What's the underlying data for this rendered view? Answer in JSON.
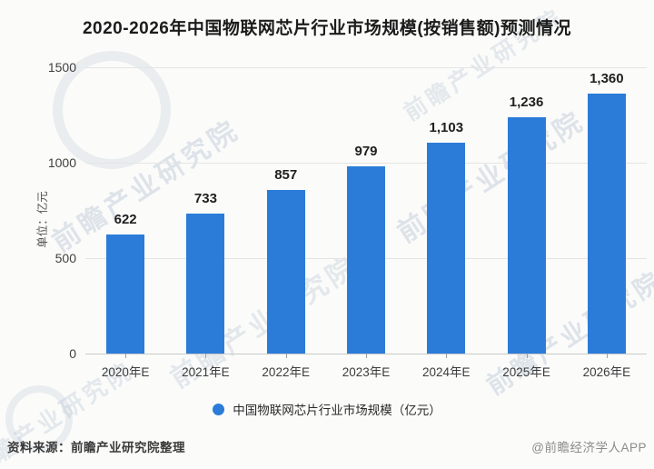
{
  "title": "2020-2026年中国物联网芯片行业市场规模(按销售额)预测情况",
  "chart_data": {
    "type": "bar",
    "categories": [
      "2020年E",
      "2021年E",
      "2022年E",
      "2023年E",
      "2024年E",
      "2025年E",
      "2026年E"
    ],
    "values": [
      622,
      733,
      857,
      979,
      1103,
      1236,
      1360
    ],
    "value_labels": [
      "622",
      "733",
      "857",
      "979",
      "1,103",
      "1,236",
      "1,360"
    ],
    "title": "2020-2026年中国物联网芯片行业市场规模(按销售额)预测情况",
    "xlabel": "",
    "ylabel": "单位：亿元",
    "ylim": [
      0,
      1500
    ],
    "yticks": [
      0,
      500,
      1000,
      1500
    ],
    "grid": true,
    "bar_color": "#2b7cd9",
    "legend_entries": [
      "中国物联网芯片行业市场规模（亿元）"
    ],
    "legend_position": "bottom"
  },
  "y_axis": {
    "unit_label": "单位：亿元"
  },
  "legend": {
    "label": "中国物联网芯片行业市场规模（亿元）",
    "dot_color": "#2b7cd9"
  },
  "footer": {
    "source": "资料来源：前瞻产业研究院整理",
    "credit": "@前瞻经济学人APP"
  },
  "watermark": {
    "text": "前瞻产业研究院"
  }
}
